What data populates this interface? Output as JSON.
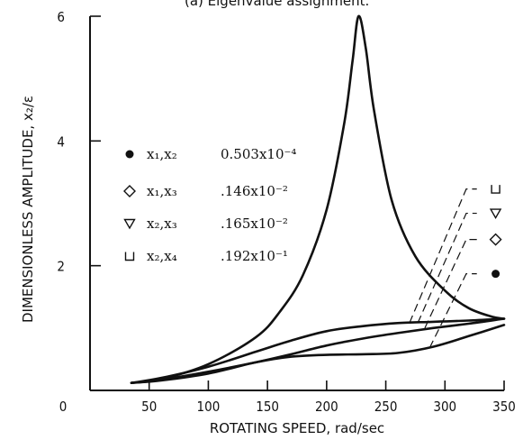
{
  "chart_data": {
    "type": "line",
    "title": "(a) Eigenvalue assignment.",
    "xlabel": "ROTATING SPEED, rad/sec",
    "ylabel": "DIMENSIONLESS AMPLITUDE, x₂/ε",
    "xlim": [
      0,
      350
    ],
    "ylim": [
      0,
      6
    ],
    "x_ticks": [
      0,
      50,
      100,
      150,
      200,
      250,
      300,
      350
    ],
    "x_tick_labels": [
      "0",
      "50",
      "100",
      "150",
      "200",
      "250",
      "300",
      "350"
    ],
    "y_ticks": [
      2,
      4,
      6
    ],
    "y_tick_labels": [
      "2",
      "4",
      "6"
    ],
    "grid": false,
    "legend": [
      {
        "label": "x₁,x₂",
        "value": "0.503x10⁻⁴",
        "marker": "filled-circle"
      },
      {
        "label": "x₁,x₃",
        "value": ".146x10⁻²",
        "marker": "diamond"
      },
      {
        "label": "x₂,x₃",
        "value": ".165x10⁻²",
        "marker": "down-triangle"
      },
      {
        "label": "x₂,x₄",
        "value": ".192x10⁻¹",
        "marker": "open-square"
      }
    ],
    "series": [
      {
        "name": "x₁,x₂",
        "marker": "filled-circle",
        "x": [
          35,
          60,
          100,
          140,
          160,
          180,
          200,
          215,
          222,
          227,
          233,
          240,
          255,
          275,
          300,
          320,
          340,
          350
        ],
        "y": [
          0.12,
          0.18,
          0.42,
          0.85,
          1.25,
          1.85,
          2.9,
          4.3,
          5.3,
          6.0,
          5.5,
          4.5,
          3.05,
          2.15,
          1.6,
          1.32,
          1.18,
          1.15
        ]
      },
      {
        "name": "x₂,x₄",
        "marker": "open-square",
        "x": [
          35,
          60,
          100,
          140,
          170,
          200,
          230,
          260,
          290,
          320,
          350
        ],
        "y": [
          0.12,
          0.2,
          0.38,
          0.62,
          0.8,
          0.95,
          1.03,
          1.08,
          1.1,
          1.12,
          1.15
        ]
      },
      {
        "name": "x₂,x₃",
        "marker": "down-triangle",
        "x": [
          35,
          60,
          100,
          140,
          170,
          200,
          230,
          260,
          290,
          320,
          350
        ],
        "y": [
          0.12,
          0.17,
          0.3,
          0.45,
          0.58,
          0.72,
          0.83,
          0.92,
          1.0,
          1.07,
          1.15
        ]
      },
      {
        "name": "x₁,x₃",
        "marker": "diamond",
        "x": [
          35,
          60,
          100,
          140,
          170,
          200,
          230,
          260,
          290,
          320,
          350
        ],
        "y": [
          0.12,
          0.16,
          0.27,
          0.45,
          0.54,
          0.57,
          0.58,
          0.6,
          0.7,
          0.87,
          1.05
        ]
      }
    ]
  }
}
